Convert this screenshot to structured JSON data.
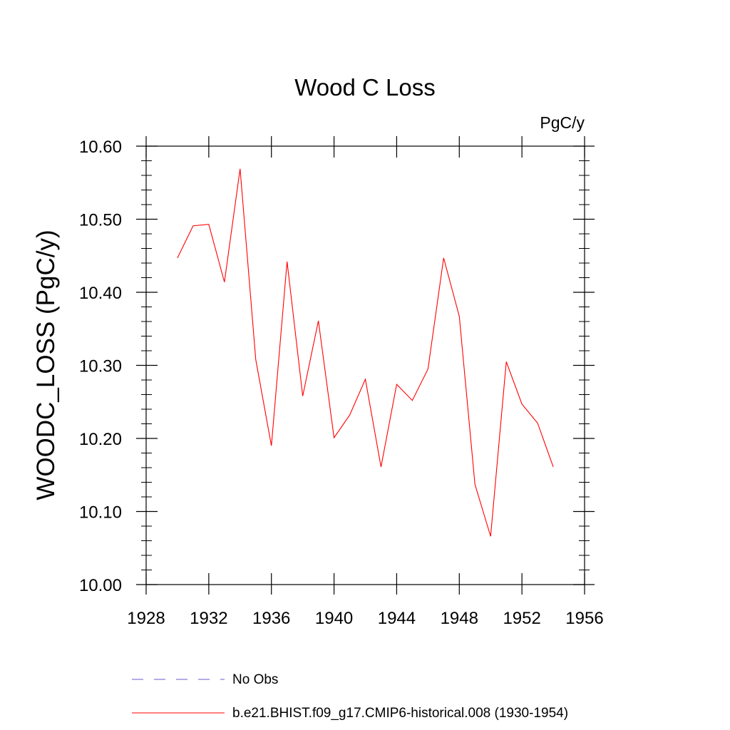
{
  "chart_data": {
    "type": "line",
    "title": "Wood C Loss",
    "units": "PgC/y",
    "ylabel": "WOODC_LOSS  (PgC/y)",
    "xlabel": "",
    "xlim": [
      1928,
      1956
    ],
    "ylim": [
      10.0,
      10.6
    ],
    "x_ticks": [
      1928,
      1932,
      1936,
      1940,
      1944,
      1948,
      1952,
      1956
    ],
    "y_ticks": [
      10.0,
      10.1,
      10.2,
      10.3,
      10.4,
      10.5,
      10.6
    ],
    "y_tick_labels": [
      "10.00",
      "10.10",
      "10.20",
      "10.30",
      "10.40",
      "10.50",
      "10.60"
    ],
    "grid": false,
    "legend_placement": "bottom",
    "series": [
      {
        "name": "b.e21.BHIST.f09_g17.CMIP6-historical.008 (1930-1954)",
        "color": "#ff0000",
        "style": "solid",
        "x": [
          1930,
          1931,
          1932,
          1933,
          1934,
          1935,
          1936,
          1937,
          1938,
          1939,
          1940,
          1941,
          1942,
          1943,
          1944,
          1945,
          1946,
          1947,
          1948,
          1949,
          1950,
          1951,
          1952,
          1953,
          1954
        ],
        "values": [
          10.447,
          10.491,
          10.493,
          10.414,
          10.569,
          10.308,
          10.19,
          10.442,
          10.258,
          10.361,
          10.201,
          10.232,
          10.281,
          10.161,
          10.274,
          10.252,
          10.295,
          10.447,
          10.367,
          10.137,
          10.066,
          10.305,
          10.247,
          10.221,
          10.161
        ]
      }
    ],
    "legend": [
      {
        "label": "No Obs",
        "color": "#6a5acd",
        "style": "dashed"
      },
      {
        "label": "b.e21.BHIST.f09_g17.CMIP6-historical.008 (1930-1954)",
        "color": "#ff0000",
        "style": "solid"
      }
    ]
  }
}
